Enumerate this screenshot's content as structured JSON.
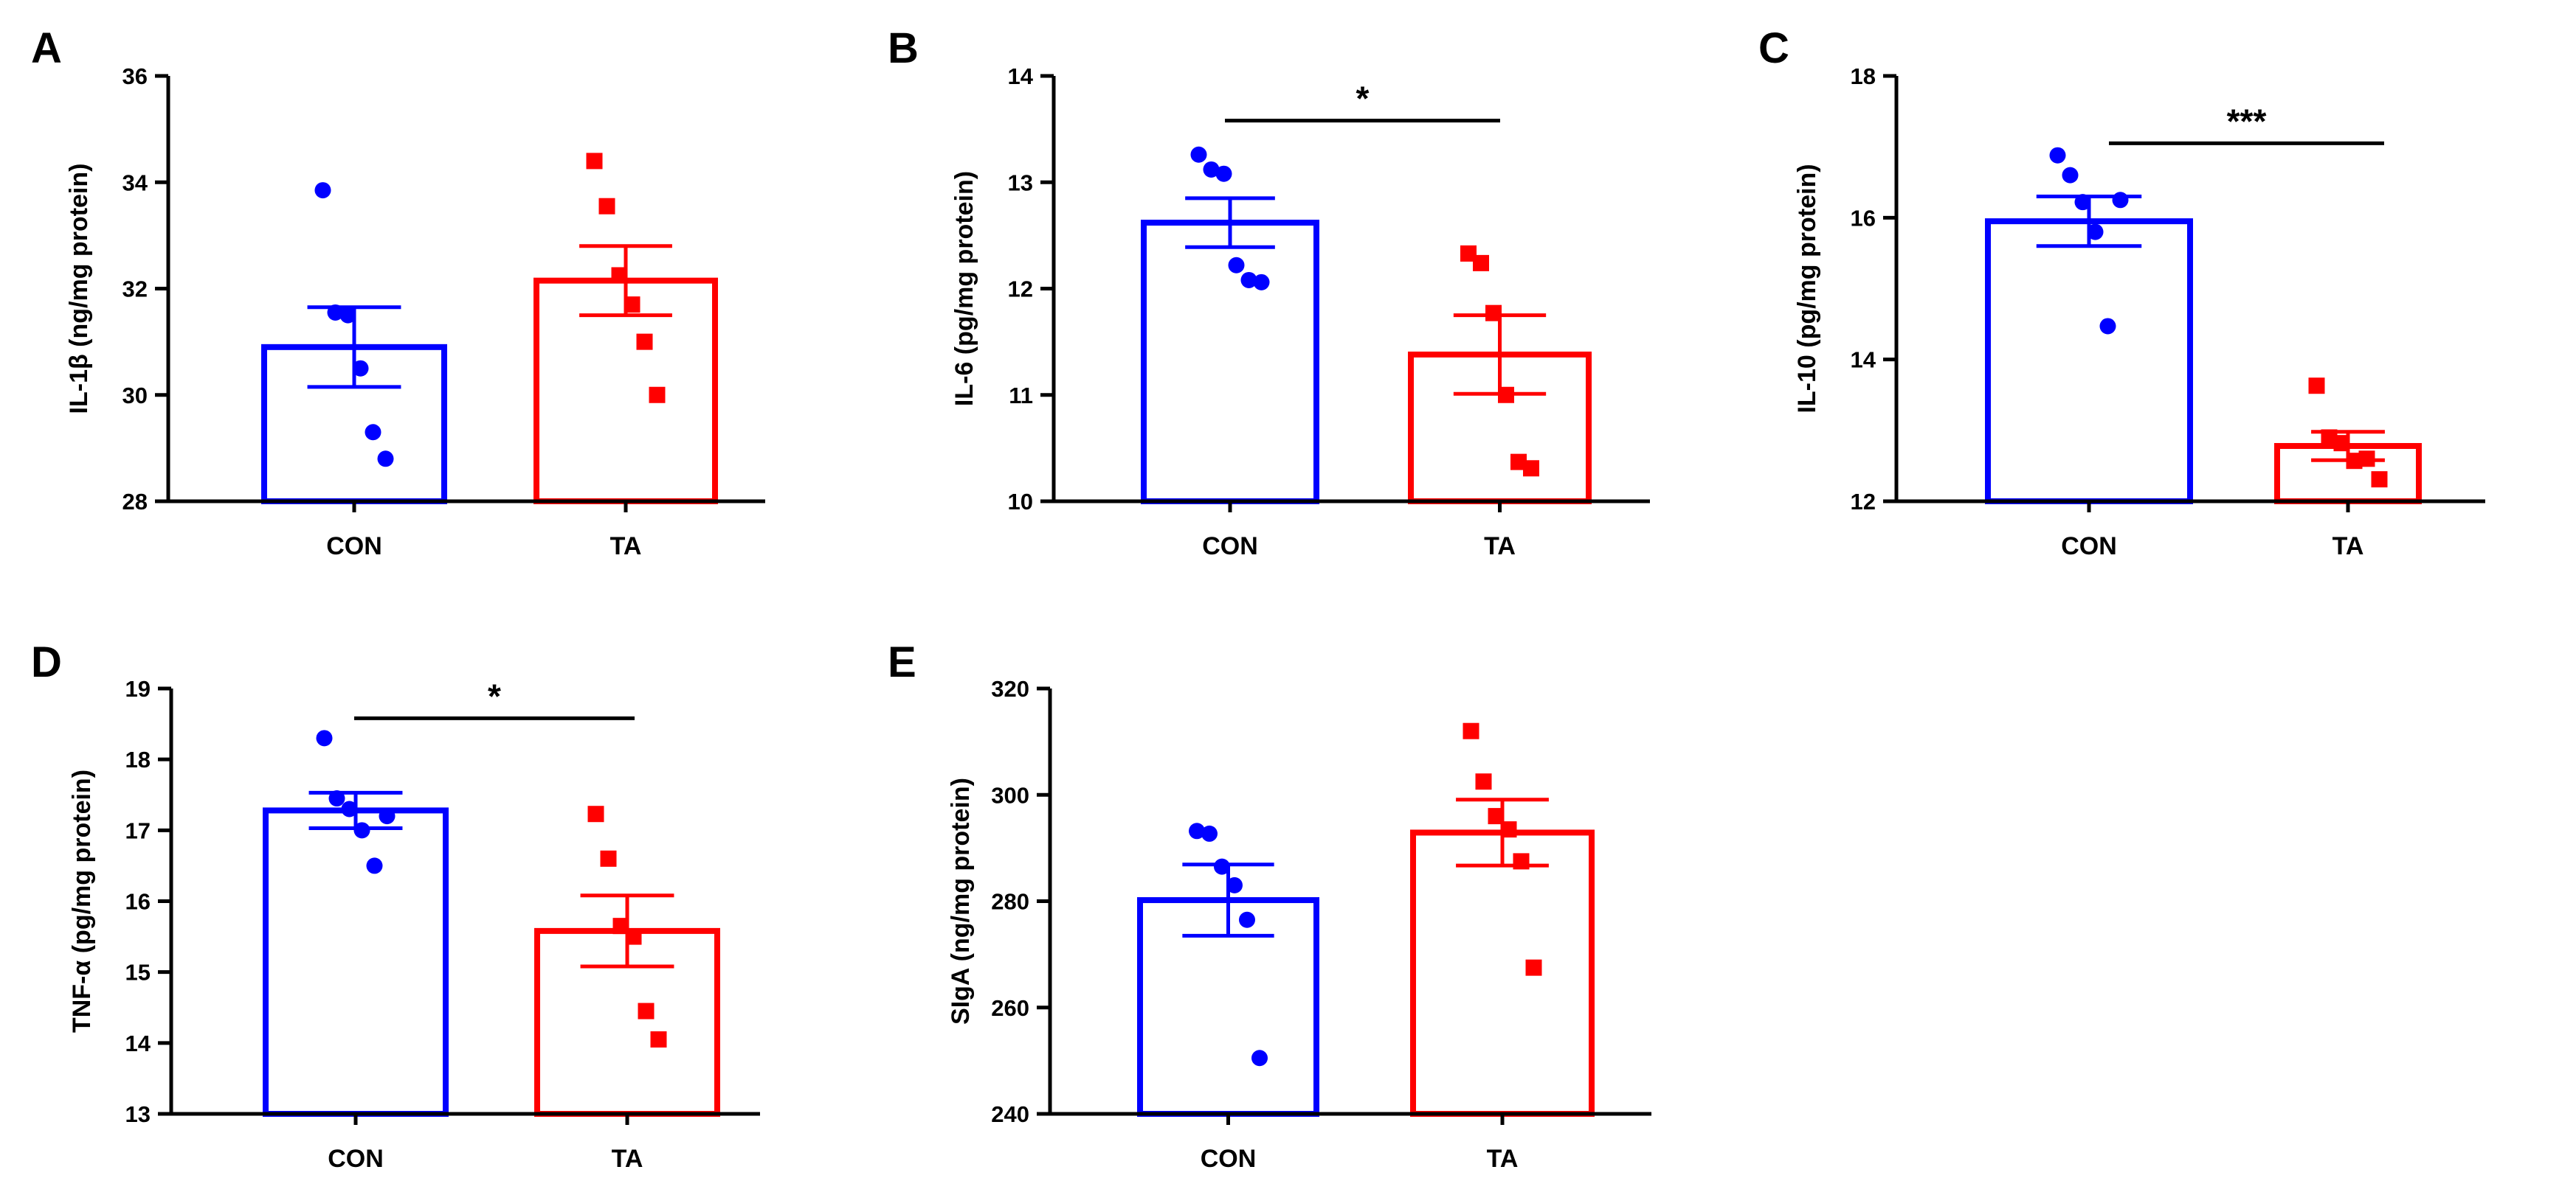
{
  "colors": {
    "con": "#0000ff",
    "ta": "#ff0000",
    "axis": "#000000"
  },
  "chart_data": [
    {
      "panel": "A",
      "type": "bar",
      "ylabel": "IL-1β (ng/mg protein)",
      "ylim": [
        28,
        36
      ],
      "ticks": [
        28,
        30,
        32,
        34,
        36
      ],
      "tick_labels": [
        "28",
        "30",
        "32",
        "34",
        "36"
      ],
      "categories": [
        "CON",
        "TA"
      ],
      "series": [
        {
          "name": "CON",
          "mean": 30.9,
          "sem": 0.75,
          "points": [
            33.85,
            31.55,
            31.5,
            30.5,
            29.3,
            28.8
          ]
        },
        {
          "name": "TA",
          "mean": 32.15,
          "sem": 0.65,
          "points": [
            34.4,
            33.55,
            32.25,
            31.7,
            31.0,
            30.0
          ]
        }
      ],
      "significance": null
    },
    {
      "panel": "B",
      "type": "bar",
      "ylabel": "IL-6 (pg/mg protein)",
      "ylim": [
        10,
        14
      ],
      "ticks": [
        10,
        11,
        12,
        13,
        14
      ],
      "tick_labels": [
        "10",
        "11",
        "12",
        "13",
        "14"
      ],
      "categories": [
        "CON",
        "TA"
      ],
      "series": [
        {
          "name": "CON",
          "mean": 12.62,
          "sem": 0.23,
          "points": [
            13.26,
            13.12,
            13.08,
            12.22,
            12.08,
            12.06
          ]
        },
        {
          "name": "TA",
          "mean": 11.38,
          "sem": 0.37,
          "points": [
            12.33,
            12.24,
            11.77,
            11.0,
            10.37,
            10.31
          ]
        }
      ],
      "significance": {
        "label": "*",
        "y": 13.58
      }
    },
    {
      "panel": "C",
      "type": "bar",
      "ylabel": "IL-10 (pg/mg protein)",
      "ylim": [
        12,
        18
      ],
      "ticks": [
        12,
        14,
        16,
        18
      ],
      "tick_labels": [
        "12",
        "14",
        "16",
        "18"
      ],
      "categories": [
        "CON",
        "TA"
      ],
      "series": [
        {
          "name": "CON",
          "mean": 15.95,
          "sem": 0.35,
          "points": [
            16.88,
            16.6,
            16.22,
            15.8,
            14.47,
            16.25
          ]
        },
        {
          "name": "TA",
          "mean": 12.78,
          "sem": 0.2,
          "points": [
            13.63,
            12.9,
            12.82,
            12.57,
            12.6,
            12.31
          ]
        }
      ],
      "significance": {
        "label": "***",
        "y": 17.05
      }
    },
    {
      "panel": "D",
      "type": "bar",
      "ylabel": "TNF-α (pg/mg protein)",
      "ylim": [
        13,
        19
      ],
      "ticks": [
        13,
        14,
        15,
        16,
        17,
        18,
        19
      ],
      "tick_labels": [
        "13",
        "14",
        "15",
        "16",
        "17",
        "18",
        "19"
      ],
      "categories": [
        "CON",
        "TA"
      ],
      "series": [
        {
          "name": "CON",
          "mean": 17.28,
          "sem": 0.25,
          "points": [
            18.3,
            17.45,
            17.3,
            17.0,
            16.5,
            17.2
          ]
        },
        {
          "name": "TA",
          "mean": 15.58,
          "sem": 0.5,
          "points": [
            17.23,
            16.6,
            15.65,
            15.5,
            14.45,
            14.05
          ]
        }
      ],
      "significance": {
        "label": "*",
        "y": 18.58
      }
    },
    {
      "panel": "E",
      "type": "bar",
      "ylabel": "SIgA (ng/mg protein)",
      "ylim": [
        240,
        320
      ],
      "ticks": [
        240,
        260,
        280,
        300,
        320
      ],
      "tick_labels": [
        "240",
        "260",
        "280",
        "300",
        "320"
      ],
      "categories": [
        "CON",
        "TA"
      ],
      "series": [
        {
          "name": "CON",
          "mean": 280.2,
          "sem": 6.7,
          "points": [
            293.2,
            292.7,
            286.5,
            283.0,
            276.5,
            250.5
          ]
        },
        {
          "name": "TA",
          "mean": 292.9,
          "sem": 6.2,
          "points": [
            312.0,
            302.5,
            296.0,
            293.5,
            287.5,
            267.5
          ]
        }
      ],
      "significance": null
    }
  ]
}
